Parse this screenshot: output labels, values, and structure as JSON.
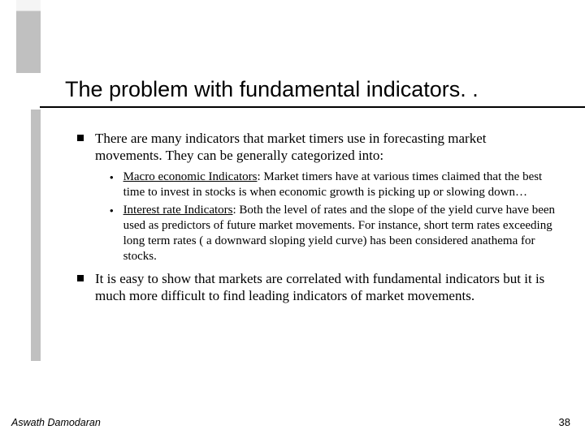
{
  "title": "The problem with fundamental indicators. .",
  "bullets": [
    {
      "text": "There are many indicators that market timers use in forecasting market movements. They can be generally categorized into:",
      "sub": [
        {
          "label": "Macro economic Indicators",
          "rest": ": Market timers have at various times claimed that the best time to invest in stocks is when economic growth is picking up or slowing down…"
        },
        {
          "label": "Interest rate Indicators",
          "rest": ": Both the level of rates and the slope of the yield curve have been used as predictors of future market movements. For instance, short term rates exceeding long term rates ( a downward sloping yield curve) has been considered anathema for stocks."
        }
      ]
    },
    {
      "text": "It is easy to show that markets are correlated with fundamental indicators but it is much more difficult to find leading indicators of market movements.",
      "sub": []
    }
  ],
  "footer": {
    "author": "Aswath Damodaran",
    "page": "38"
  },
  "colors": {
    "accent": "#c0c0c0",
    "text": "#000000",
    "bg": "#ffffff"
  },
  "fonts": {
    "title": "Arial",
    "body": "Times New Roman",
    "title_size_pt": 27,
    "body_size_pt": 17,
    "sub_size_pt": 15
  }
}
